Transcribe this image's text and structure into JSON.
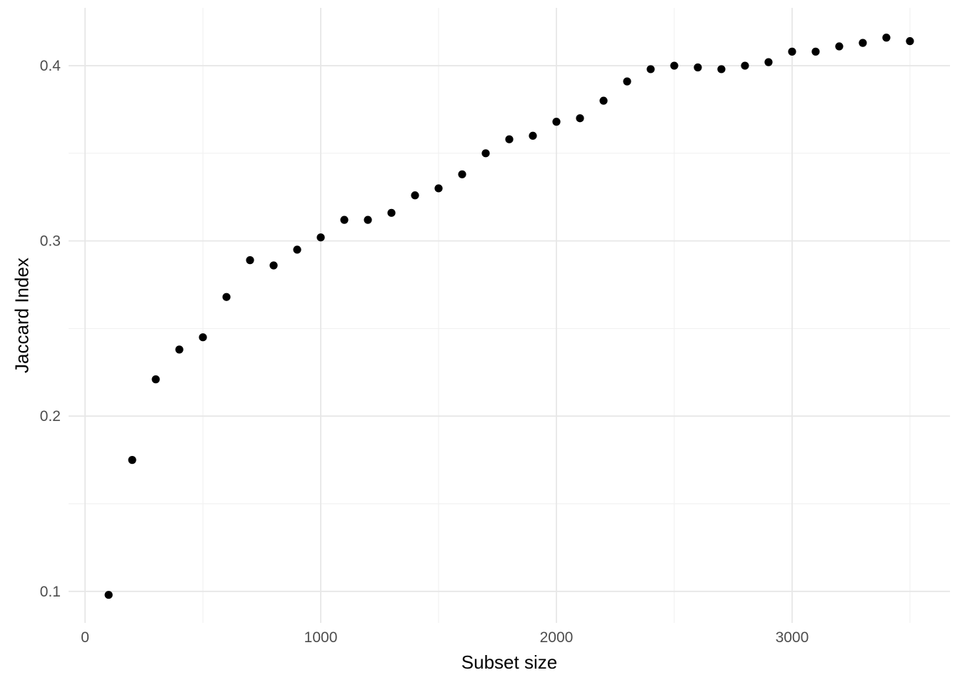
{
  "chart_data": {
    "type": "scatter",
    "title": "",
    "xlabel": "Subset size",
    "ylabel": "Jaccard Index",
    "x": [
      100,
      200,
      300,
      400,
      500,
      600,
      700,
      800,
      900,
      1000,
      1100,
      1200,
      1300,
      1400,
      1500,
      1600,
      1700,
      1800,
      1900,
      2000,
      2100,
      2200,
      2300,
      2400,
      2500,
      2600,
      2700,
      2800,
      2900,
      3000,
      3100,
      3200,
      3300,
      3400,
      3500
    ],
    "y": [
      0.098,
      0.175,
      0.221,
      0.238,
      0.245,
      0.268,
      0.289,
      0.286,
      0.295,
      0.302,
      0.312,
      0.312,
      0.316,
      0.326,
      0.33,
      0.338,
      0.35,
      0.358,
      0.36,
      0.368,
      0.37,
      0.38,
      0.391,
      0.398,
      0.4,
      0.399,
      0.398,
      0.4,
      0.402,
      0.408,
      0.408,
      0.411,
      0.413,
      0.416,
      0.414
    ],
    "xlim": [
      -70,
      3670
    ],
    "ylim": [
      0.082,
      0.433
    ],
    "x_ticks": [
      0,
      1000,
      2000,
      3000
    ],
    "x_tick_labels": [
      "0",
      "1000",
      "2000",
      "3000"
    ],
    "x_minor_ticks": [
      500,
      1500,
      2500,
      3500
    ],
    "y_ticks": [
      0.1,
      0.2,
      0.3,
      0.4
    ],
    "y_tick_labels": [
      "0.1",
      "0.2",
      "0.3",
      "0.4"
    ],
    "y_minor_ticks": [
      0.15,
      0.25,
      0.35
    ],
    "grid": true,
    "legend": false,
    "point_color": "#000000",
    "point_radius": 5.6,
    "colors": {
      "background": "#FFFFFF",
      "grid_major": "#E7E7E7",
      "grid_minor": "#F1F1F1",
      "tick_label": "#4D4D4D",
      "axis_title": "#000000"
    }
  }
}
